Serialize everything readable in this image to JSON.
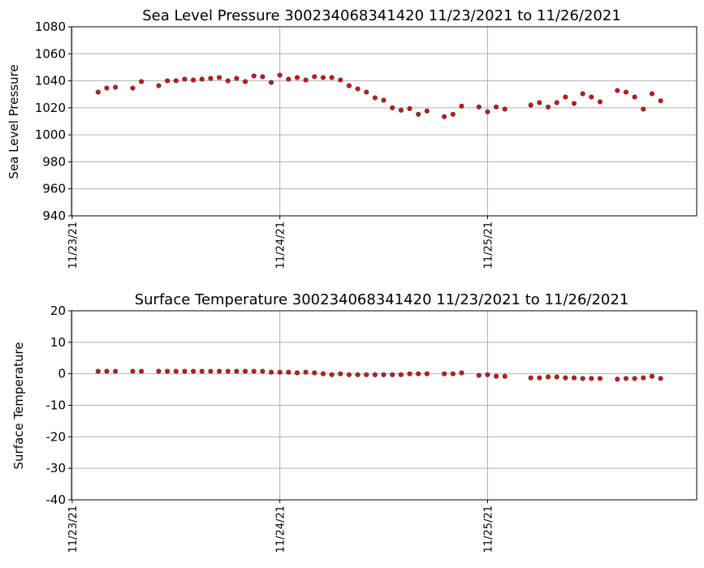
{
  "chart_data": [
    {
      "type": "scatter",
      "title": "Sea Level Pressure 300234068341420  11/23/2021 to 11/26/2021",
      "xlabel": "",
      "ylabel": "Sea Level Pressure",
      "ylim": [
        940,
        1080
      ],
      "yticks": [
        940,
        960,
        980,
        1000,
        1020,
        1040,
        1060,
        1080
      ],
      "xlim": [
        "2021-11-22T23:55",
        "2021-11-26T00:10"
      ],
      "xticks": [
        "2021-11-23T00:00",
        "2021-11-24T00:00",
        "2021-11-25T00:00"
      ],
      "xtick_labels": [
        "11/23/21",
        "11/24/21",
        "11/25/21"
      ],
      "grid": true,
      "marker_color": "#ff0000",
      "marker_edge_color": "#444444",
      "x": [
        "2021-11-23T03:00",
        "2021-11-23T04:00",
        "2021-11-23T05:00",
        "2021-11-23T07:00",
        "2021-11-23T08:00",
        "2021-11-23T10:00",
        "2021-11-23T11:00",
        "2021-11-23T12:00",
        "2021-11-23T13:00",
        "2021-11-23T14:00",
        "2021-11-23T15:00",
        "2021-11-23T16:00",
        "2021-11-23T17:00",
        "2021-11-23T18:00",
        "2021-11-23T19:00",
        "2021-11-23T20:00",
        "2021-11-23T21:00",
        "2021-11-23T22:00",
        "2021-11-23T23:00",
        "2021-11-24T00:00",
        "2021-11-24T01:00",
        "2021-11-24T02:00",
        "2021-11-24T03:00",
        "2021-11-24T04:00",
        "2021-11-24T05:00",
        "2021-11-24T06:00",
        "2021-11-24T07:00",
        "2021-11-24T08:00",
        "2021-11-24T09:00",
        "2021-11-24T10:00",
        "2021-11-24T11:00",
        "2021-11-24T12:00",
        "2021-11-24T13:00",
        "2021-11-24T14:00",
        "2021-11-24T15:00",
        "2021-11-24T16:00",
        "2021-11-24T17:00",
        "2021-11-24T19:00",
        "2021-11-24T20:00",
        "2021-11-24T21:00",
        "2021-11-24T23:00",
        "2021-11-25T00:00",
        "2021-11-25T01:00",
        "2021-11-25T02:00",
        "2021-11-25T05:00",
        "2021-11-25T06:00",
        "2021-11-25T07:00",
        "2021-11-25T08:00",
        "2021-11-25T09:00",
        "2021-11-25T10:00",
        "2021-11-25T11:00",
        "2021-11-25T12:00",
        "2021-11-25T13:00",
        "2021-11-25T15:00",
        "2021-11-25T16:00",
        "2021-11-25T17:00",
        "2021-11-25T18:00",
        "2021-11-25T19:00",
        "2021-11-25T20:00"
      ],
      "y": [
        1031.6,
        1034.6,
        1035.2,
        1034.6,
        1039.4,
        1036.4,
        1040,
        1040,
        1041.2,
        1040.6,
        1041.2,
        1041.8,
        1042.4,
        1040,
        1041.8,
        1039.4,
        1043.6,
        1043,
        1038.8,
        1044.2,
        1041.2,
        1042.4,
        1040.6,
        1043,
        1042.4,
        1042.4,
        1040.6,
        1036.4,
        1034,
        1031.6,
        1027.4,
        1025.6,
        1020,
        1018.2,
        1019.4,
        1015.2,
        1017.6,
        1013.4,
        1015.2,
        1021.2,
        1020.6,
        1017,
        1020.6,
        1019,
        1022,
        1023.8,
        1020.6,
        1023.8,
        1028,
        1023.2,
        1030.4,
        1028,
        1024.4,
        1032.8,
        1031.6,
        1028,
        1019,
        1030.4,
        1025.2
      ]
    },
    {
      "type": "scatter",
      "title": "Surface Temperature 300234068341420  11/23/2021 to 11/26/2021",
      "xlabel": "",
      "ylabel": "Surface Temperature",
      "ylim": [
        -40,
        20
      ],
      "yticks": [
        -40,
        -30,
        -20,
        -10,
        0,
        10,
        20
      ],
      "xlim": [
        "2021-11-22T23:55",
        "2021-11-26T00:10"
      ],
      "xticks": [
        "2021-11-23T00:00",
        "2021-11-24T00:00",
        "2021-11-25T00:00"
      ],
      "xtick_labels": [
        "11/23/21",
        "11/24/21",
        "11/25/21"
      ],
      "grid": true,
      "marker_color": "#ff0000",
      "marker_edge_color": "#444444",
      "x": [
        "2021-11-23T03:00",
        "2021-11-23T04:00",
        "2021-11-23T05:00",
        "2021-11-23T07:00",
        "2021-11-23T08:00",
        "2021-11-23T10:00",
        "2021-11-23T11:00",
        "2021-11-23T12:00",
        "2021-11-23T13:00",
        "2021-11-23T14:00",
        "2021-11-23T15:00",
        "2021-11-23T16:00",
        "2021-11-23T17:00",
        "2021-11-23T18:00",
        "2021-11-23T19:00",
        "2021-11-23T20:00",
        "2021-11-23T21:00",
        "2021-11-23T22:00",
        "2021-11-23T23:00",
        "2021-11-24T00:00",
        "2021-11-24T01:00",
        "2021-11-24T02:00",
        "2021-11-24T03:00",
        "2021-11-24T04:00",
        "2021-11-24T05:00",
        "2021-11-24T06:00",
        "2021-11-24T07:00",
        "2021-11-24T08:00",
        "2021-11-24T09:00",
        "2021-11-24T10:00",
        "2021-11-24T11:00",
        "2021-11-24T12:00",
        "2021-11-24T13:00",
        "2021-11-24T14:00",
        "2021-11-24T15:00",
        "2021-11-24T16:00",
        "2021-11-24T17:00",
        "2021-11-24T19:00",
        "2021-11-24T20:00",
        "2021-11-24T21:00",
        "2021-11-24T23:00",
        "2021-11-25T00:00",
        "2021-11-25T01:00",
        "2021-11-25T02:00",
        "2021-11-25T05:00",
        "2021-11-25T06:00",
        "2021-11-25T07:00",
        "2021-11-25T08:00",
        "2021-11-25T09:00",
        "2021-11-25T10:00",
        "2021-11-25T11:00",
        "2021-11-25T12:00",
        "2021-11-25T13:00",
        "2021-11-25T15:00",
        "2021-11-25T16:00",
        "2021-11-25T17:00",
        "2021-11-25T18:00",
        "2021-11-25T19:00",
        "2021-11-25T20:00"
      ],
      "y": [
        0.8,
        0.8,
        0.8,
        0.8,
        0.8,
        0.8,
        0.8,
        0.8,
        0.8,
        0.8,
        0.8,
        0.8,
        0.8,
        0.8,
        0.8,
        0.8,
        0.8,
        0.8,
        0.5,
        0.5,
        0.5,
        0.3,
        0.5,
        0.3,
        0,
        -0.3,
        0,
        -0.3,
        -0.3,
        -0.3,
        -0.3,
        -0.3,
        -0.3,
        -0.3,
        0,
        0,
        0,
        0,
        0,
        0.3,
        -0.5,
        -0.3,
        -0.8,
        -0.8,
        -1.3,
        -1.3,
        -1,
        -1,
        -1.3,
        -1.3,
        -1.5,
        -1.5,
        -1.5,
        -1.7,
        -1.5,
        -1.5,
        -1.3,
        -0.8,
        -1.5
      ]
    }
  ]
}
